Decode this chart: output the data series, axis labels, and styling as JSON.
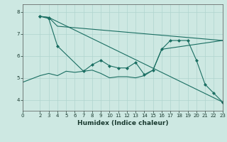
{
  "title": "",
  "xlabel": "Humidex (Indice chaleur)",
  "background_color": "#cde8e2",
  "grid_color": "#b0d4ce",
  "line_color": "#1a6e62",
  "xlim": [
    0,
    23
  ],
  "ylim": [
    3.5,
    8.35
  ],
  "yticks": [
    4,
    5,
    6,
    7,
    8
  ],
  "xticks": [
    0,
    2,
    3,
    4,
    5,
    6,
    7,
    8,
    9,
    10,
    11,
    12,
    13,
    14,
    15,
    16,
    17,
    18,
    19,
    20,
    21,
    22,
    23
  ],
  "lines": [
    {
      "x": [
        2,
        3,
        23
      ],
      "y": [
        7.8,
        7.75,
        3.9
      ],
      "marker": true
    },
    {
      "x": [
        2,
        3,
        4,
        7,
        8,
        9,
        10,
        11,
        12,
        13,
        14,
        15,
        16,
        17,
        18,
        19,
        20,
        21,
        22,
        23
      ],
      "y": [
        7.8,
        7.7,
        6.45,
        5.3,
        5.6,
        5.8,
        5.55,
        5.45,
        5.45,
        5.7,
        5.15,
        5.35,
        6.3,
        6.7,
        6.7,
        6.7,
        5.8,
        4.7,
        4.3,
        3.9
      ],
      "marker": true
    },
    {
      "x": [
        2,
        3,
        4,
        23
      ],
      "y": [
        7.8,
        7.75,
        7.35,
        6.7
      ],
      "marker": false
    },
    {
      "x": [
        0,
        2,
        3,
        4,
        5,
        6,
        7,
        8,
        9,
        10,
        11,
        12,
        13,
        14,
        15,
        16,
        23
      ],
      "y": [
        4.8,
        5.1,
        5.2,
        5.1,
        5.3,
        5.25,
        5.3,
        5.35,
        5.2,
        5.0,
        5.05,
        5.05,
        5.0,
        5.1,
        5.35,
        6.3,
        6.7
      ],
      "marker": false
    }
  ]
}
